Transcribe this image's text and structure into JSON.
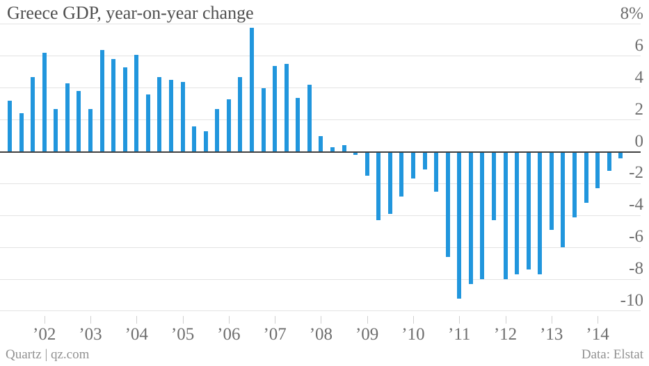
{
  "title": "Greece GDP, year-on-year change",
  "footer": {
    "left": "Quartz | qz.com",
    "right": "Data: Elstat"
  },
  "colors": {
    "bar": "#2196dd",
    "gridline": "#e3e3e3",
    "zero_line": "#3f3f3f",
    "title_text": "#4f4f4f",
    "axis_label": "#6e6e6e",
    "footer_text": "#919191",
    "tick_mark": "#cfcfcf",
    "background": "#ffffff"
  },
  "chart_data": {
    "type": "bar",
    "title": "Greece GDP, year-on-year change",
    "unit": "percent",
    "xlabel": "",
    "ylabel": "",
    "ylim": [
      -10,
      8
    ],
    "grid": true,
    "legend": false,
    "y_axis_side": "right",
    "y_ticks": [
      {
        "value": 8,
        "label": "8%"
      },
      {
        "value": 6,
        "label": "6"
      },
      {
        "value": 4,
        "label": "4"
      },
      {
        "value": 2,
        "label": "2"
      },
      {
        "value": 0,
        "label": "0"
      },
      {
        "value": -2,
        "label": "-2"
      },
      {
        "value": -4,
        "label": "-4"
      },
      {
        "value": -6,
        "label": "-6"
      },
      {
        "value": -8,
        "label": "-8"
      },
      {
        "value": -10,
        "label": "-10"
      }
    ],
    "x_year_ticks": [
      "’02",
      "’03",
      "’04",
      "’05",
      "’06",
      "’07",
      "’08",
      "’09",
      "’10",
      "’11",
      "’12",
      "’13",
      "’14"
    ],
    "categories": [
      "2001 Q2",
      "2001 Q3",
      "2001 Q4",
      "2002 Q1",
      "2002 Q2",
      "2002 Q3",
      "2002 Q4",
      "2003 Q1",
      "2003 Q2",
      "2003 Q3",
      "2003 Q4",
      "2004 Q1",
      "2004 Q2",
      "2004 Q3",
      "2004 Q4",
      "2005 Q1",
      "2005 Q2",
      "2005 Q3",
      "2005 Q4",
      "2006 Q1",
      "2006 Q2",
      "2006 Q3",
      "2006 Q4",
      "2007 Q1",
      "2007 Q2",
      "2007 Q3",
      "2007 Q4",
      "2008 Q1",
      "2008 Q2",
      "2008 Q3",
      "2008 Q4",
      "2009 Q1",
      "2009 Q2",
      "2009 Q3",
      "2009 Q4",
      "2010 Q1",
      "2010 Q2",
      "2010 Q3",
      "2010 Q4",
      "2011 Q1",
      "2011 Q2",
      "2011 Q3",
      "2011 Q4",
      "2012 Q1",
      "2012 Q2",
      "2012 Q3",
      "2012 Q4",
      "2013 Q1",
      "2013 Q2",
      "2013 Q3",
      "2013 Q4",
      "2014 Q1",
      "2014 Q2",
      "2014 Q3"
    ],
    "values": [
      3.2,
      2.4,
      4.7,
      6.2,
      2.7,
      4.3,
      3.8,
      2.7,
      6.4,
      5.8,
      5.3,
      6.1,
      3.6,
      4.7,
      4.5,
      4.4,
      1.6,
      1.3,
      2.7,
      3.3,
      4.7,
      7.8,
      4.0,
      5.4,
      5.5,
      3.4,
      4.2,
      1.0,
      0.3,
      0.4,
      -0.2,
      -1.5,
      -4.3,
      -3.9,
      -2.8,
      -1.7,
      -1.1,
      -2.5,
      -6.6,
      -9.2,
      -8.3,
      -8.0,
      -4.3,
      -8.0,
      -7.7,
      -7.4,
      -7.7,
      -4.9,
      -6.0,
      -4.1,
      -3.2,
      -2.3,
      -1.2,
      -0.4
    ]
  }
}
